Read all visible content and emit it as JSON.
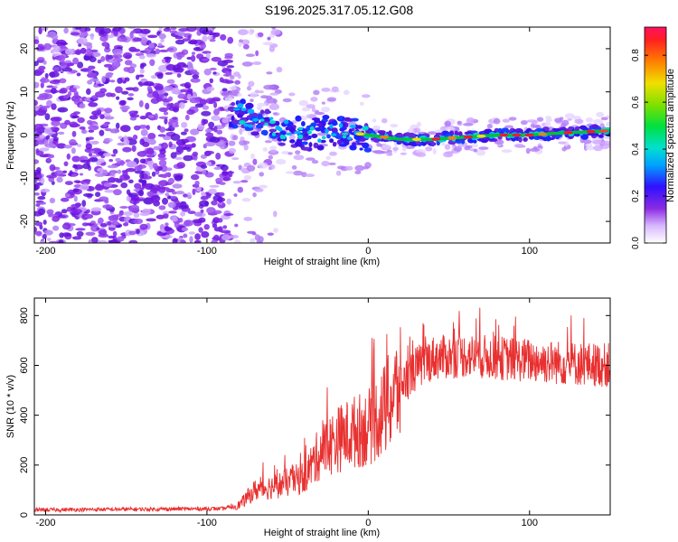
{
  "title": "S196.2025.317.05.12.G08",
  "colors": {
    "snr_line": "#e83030",
    "spectro_track": "#00c040",
    "spectro_peak": "#e82020"
  },
  "chart_data": [
    {
      "type": "heatmap",
      "name": "spectrogram",
      "xlabel": "Height of straight line (km)",
      "ylabel": "Frequency (Hz)",
      "xlim": [
        -207,
        150
      ],
      "ylim": [
        -25,
        25
      ],
      "xticks": [
        -200,
        -100,
        0,
        100
      ],
      "yticks": [
        -20,
        -10,
        0,
        10,
        20
      ],
      "colorbar": {
        "label": "Normalized spectral amplitude",
        "range": [
          0,
          0.92
        ],
        "ticks": [
          "0.0",
          "0.2",
          "0.4",
          "0.6",
          "0.8"
        ],
        "tick_values": [
          0,
          0.2,
          0.4,
          0.6,
          0.8
        ]
      },
      "description_points": {
        "noise_region_end_km": -85,
        "track": [
          {
            "x": -80,
            "f": 5
          },
          {
            "x": -70,
            "f": 3
          },
          {
            "x": -60,
            "f": 2
          },
          {
            "x": -40,
            "f": 0
          },
          {
            "x": -20,
            "f": 1
          },
          {
            "x": 0,
            "f": 0
          },
          {
            "x": 20,
            "f": -1
          },
          {
            "x": 40,
            "f": -1
          },
          {
            "x": 60,
            "f": -0.5
          },
          {
            "x": 80,
            "f": 0
          },
          {
            "x": 100,
            "f": 0
          },
          {
            "x": 120,
            "f": 0.5
          },
          {
            "x": 150,
            "f": 1
          }
        ]
      }
    },
    {
      "type": "line",
      "name": "snr",
      "xlabel": "Height of straight line (km)",
      "ylabel": "SNR (10 * v/v)",
      "xlim": [
        -207,
        150
      ],
      "ylim": [
        0,
        870
      ],
      "xticks": [
        -200,
        -100,
        0,
        100
      ],
      "yticks": [
        0,
        200,
        400,
        600,
        800
      ],
      "trend": [
        {
          "x": -207,
          "y": 20
        },
        {
          "x": -90,
          "y": 25
        },
        {
          "x": -80,
          "y": 40
        },
        {
          "x": -70,
          "y": 100
        },
        {
          "x": -55,
          "y": 120
        },
        {
          "x": -40,
          "y": 150
        },
        {
          "x": -30,
          "y": 250
        },
        {
          "x": -20,
          "y": 300
        },
        {
          "x": -10,
          "y": 330
        },
        {
          "x": 0,
          "y": 350
        },
        {
          "x": 10,
          "y": 420
        },
        {
          "x": 20,
          "y": 520
        },
        {
          "x": 30,
          "y": 590
        },
        {
          "x": 40,
          "y": 630
        },
        {
          "x": 60,
          "y": 640
        },
        {
          "x": 80,
          "y": 630
        },
        {
          "x": 100,
          "y": 620
        },
        {
          "x": 120,
          "y": 610
        },
        {
          "x": 150,
          "y": 600
        }
      ]
    }
  ]
}
